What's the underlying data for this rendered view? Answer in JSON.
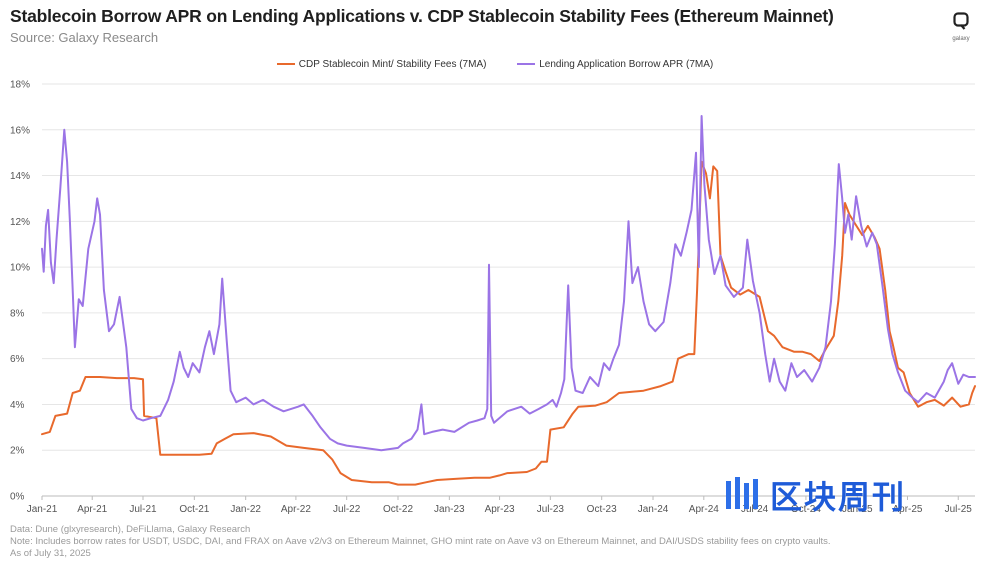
{
  "header": {
    "title": "Stablecoin Borrow APR on Lending Applications v. CDP Stablecoin Stability Fees (Ethereum Mainnet)",
    "subtitle": "Source: Galaxy Research",
    "logo_text": "galaxy"
  },
  "watermark": {
    "text": "区块周刊"
  },
  "notes": {
    "line1": "Data: Dune (glxyresearch), DeFiLlama, Galaxy Research",
    "line2": "Note: Includes borrow rates for USDT, USDC, DAI, and FRAX on Aave v2/v3 on Ethereum Mainnet, GHO mint rate on Aave v3 on Ethereum Mainnet, and DAI/USDS stability fees on crypto vaults.",
    "line3": "As of July 31, 2025"
  },
  "colors": {
    "cdp": "#e8692c",
    "lending": "#9b74e6",
    "grid": "#e6e6e6"
  },
  "chart_data": {
    "type": "line",
    "title": "Stablecoin Borrow APR on Lending Applications v. CDP Stablecoin Stability Fees (Ethereum Mainnet)",
    "xlabel": "",
    "ylabel": "",
    "ylim": [
      0,
      18
    ],
    "y_ticks": [
      "0%",
      "2%",
      "4%",
      "6%",
      "8%",
      "10%",
      "12%",
      "14%",
      "16%",
      "18%"
    ],
    "x_range": [
      "2021-01-01",
      "2025-07-31"
    ],
    "x_ticks": [
      "Jan-21",
      "Apr-21",
      "Jul-21",
      "Oct-21",
      "Jan-22",
      "Apr-22",
      "Jul-22",
      "Oct-22",
      "Jan-23",
      "Apr-23",
      "Jul-23",
      "Oct-23",
      "Jan-24",
      "Apr-24",
      "Jul-24",
      "Oct-24",
      "Jan-25",
      "Apr-25",
      "Jul-25"
    ],
    "grid": "horizontal",
    "legend_position": "top-center",
    "series": [
      {
        "name": "CDP Stablecoin Mint/ Stability Fees (7MA)",
        "color": "#e8692c",
        "points": [
          [
            "2021-01-01",
            2.7
          ],
          [
            "2021-01-15",
            2.8
          ],
          [
            "2021-01-25",
            3.5
          ],
          [
            "2021-02-15",
            3.6
          ],
          [
            "2021-02-25",
            4.5
          ],
          [
            "2021-03-10",
            4.6
          ],
          [
            "2021-03-20",
            5.2
          ],
          [
            "2021-04-15",
            5.2
          ],
          [
            "2021-05-15",
            5.15
          ],
          [
            "2021-06-15",
            5.15
          ],
          [
            "2021-07-01",
            5.1
          ],
          [
            "2021-07-03",
            3.5
          ],
          [
            "2021-07-25",
            3.4
          ],
          [
            "2021-08-01",
            1.8
          ],
          [
            "2021-10-10",
            1.8
          ],
          [
            "2021-11-01",
            1.85
          ],
          [
            "2021-11-10",
            2.3
          ],
          [
            "2021-11-25",
            2.5
          ],
          [
            "2021-12-10",
            2.7
          ],
          [
            "2022-01-15",
            2.75
          ],
          [
            "2022-02-15",
            2.6
          ],
          [
            "2022-03-15",
            2.2
          ],
          [
            "2022-04-15",
            2.1
          ],
          [
            "2022-05-20",
            2.0
          ],
          [
            "2022-06-05",
            1.6
          ],
          [
            "2022-06-20",
            1.0
          ],
          [
            "2022-07-10",
            0.7
          ],
          [
            "2022-08-15",
            0.6
          ],
          [
            "2022-09-15",
            0.6
          ],
          [
            "2022-10-01",
            0.5
          ],
          [
            "2022-11-01",
            0.5
          ],
          [
            "2022-11-20",
            0.6
          ],
          [
            "2022-12-10",
            0.7
          ],
          [
            "2023-01-15",
            0.75
          ],
          [
            "2023-02-15",
            0.8
          ],
          [
            "2023-03-15",
            0.8
          ],
          [
            "2023-04-01",
            0.9
          ],
          [
            "2023-04-15",
            1.0
          ],
          [
            "2023-05-20",
            1.05
          ],
          [
            "2023-06-05",
            1.2
          ],
          [
            "2023-06-15",
            1.5
          ],
          [
            "2023-06-25",
            1.5
          ],
          [
            "2023-07-01",
            2.9
          ],
          [
            "2023-07-25",
            3.0
          ],
          [
            "2023-08-10",
            3.6
          ],
          [
            "2023-08-20",
            3.9
          ],
          [
            "2023-09-20",
            3.95
          ],
          [
            "2023-10-10",
            4.1
          ],
          [
            "2023-11-01",
            4.5
          ],
          [
            "2023-12-15",
            4.6
          ],
          [
            "2024-01-15",
            4.8
          ],
          [
            "2024-02-05",
            5.0
          ],
          [
            "2024-02-15",
            6.0
          ],
          [
            "2024-03-05",
            6.2
          ],
          [
            "2024-03-15",
            6.2
          ],
          [
            "2024-03-20",
            9.0
          ],
          [
            "2024-03-28",
            14.6
          ],
          [
            "2024-04-05",
            14.1
          ],
          [
            "2024-04-12",
            13.0
          ],
          [
            "2024-04-18",
            14.4
          ],
          [
            "2024-04-25",
            14.2
          ],
          [
            "2024-05-01",
            10.5
          ],
          [
            "2024-05-10",
            9.8
          ],
          [
            "2024-05-20",
            9.1
          ],
          [
            "2024-06-05",
            8.8
          ],
          [
            "2024-06-20",
            9.0
          ],
          [
            "2024-07-10",
            8.7
          ],
          [
            "2024-07-25",
            7.2
          ],
          [
            "2024-08-05",
            7.0
          ],
          [
            "2024-08-20",
            6.5
          ],
          [
            "2024-09-10",
            6.3
          ],
          [
            "2024-09-25",
            6.3
          ],
          [
            "2024-10-10",
            6.2
          ],
          [
            "2024-10-25",
            5.9
          ],
          [
            "2024-11-05",
            6.4
          ],
          [
            "2024-11-20",
            7.0
          ],
          [
            "2024-11-28",
            8.5
          ],
          [
            "2024-12-05",
            10.5
          ],
          [
            "2024-12-10",
            12.8
          ],
          [
            "2024-12-18",
            12.3
          ],
          [
            "2024-12-28",
            11.9
          ],
          [
            "2025-01-10",
            11.4
          ],
          [
            "2025-01-20",
            11.8
          ],
          [
            "2025-02-01",
            11.3
          ],
          [
            "2025-02-10",
            10.8
          ],
          [
            "2025-02-20",
            9.0
          ],
          [
            "2025-02-28",
            7.2
          ],
          [
            "2025-03-05",
            6.7
          ],
          [
            "2025-03-15",
            5.6
          ],
          [
            "2025-03-25",
            5.4
          ],
          [
            "2025-04-05",
            4.5
          ],
          [
            "2025-04-20",
            3.9
          ],
          [
            "2025-05-05",
            4.1
          ],
          [
            "2025-05-20",
            4.2
          ],
          [
            "2025-06-05",
            3.95
          ],
          [
            "2025-06-20",
            4.3
          ],
          [
            "2025-07-05",
            3.9
          ],
          [
            "2025-07-20",
            4.0
          ],
          [
            "2025-07-26",
            4.5
          ],
          [
            "2025-07-31",
            4.8
          ]
        ]
      },
      {
        "name": "Lending Application Borrow APR (7MA)",
        "color": "#9b74e6",
        "points": [
          [
            "2021-01-01",
            10.8
          ],
          [
            "2021-01-04",
            9.8
          ],
          [
            "2021-01-08",
            11.8
          ],
          [
            "2021-01-12",
            12.5
          ],
          [
            "2021-01-17",
            10.2
          ],
          [
            "2021-01-22",
            9.3
          ],
          [
            "2021-01-27",
            11.2
          ],
          [
            "2021-02-03",
            13.5
          ],
          [
            "2021-02-10",
            16.0
          ],
          [
            "2021-02-15",
            14.6
          ],
          [
            "2021-02-20",
            12.0
          ],
          [
            "2021-02-25",
            9.0
          ],
          [
            "2021-03-01",
            6.5
          ],
          [
            "2021-03-08",
            8.6
          ],
          [
            "2021-03-15",
            8.3
          ],
          [
            "2021-03-25",
            10.8
          ],
          [
            "2021-04-05",
            12.0
          ],
          [
            "2021-04-10",
            13.0
          ],
          [
            "2021-04-15",
            12.3
          ],
          [
            "2021-04-22",
            9.0
          ],
          [
            "2021-05-01",
            7.2
          ],
          [
            "2021-05-10",
            7.5
          ],
          [
            "2021-05-20",
            8.7
          ],
          [
            "2021-06-01",
            6.5
          ],
          [
            "2021-06-10",
            3.8
          ],
          [
            "2021-06-20",
            3.4
          ],
          [
            "2021-07-01",
            3.3
          ],
          [
            "2021-07-15",
            3.4
          ],
          [
            "2021-08-01",
            3.5
          ],
          [
            "2021-08-15",
            4.2
          ],
          [
            "2021-08-25",
            5.0
          ],
          [
            "2021-09-05",
            6.3
          ],
          [
            "2021-09-12",
            5.6
          ],
          [
            "2021-09-20",
            5.2
          ],
          [
            "2021-09-28",
            5.8
          ],
          [
            "2021-10-10",
            5.4
          ],
          [
            "2021-10-20",
            6.5
          ],
          [
            "2021-10-28",
            7.2
          ],
          [
            "2021-11-05",
            6.2
          ],
          [
            "2021-11-15",
            7.5
          ],
          [
            "2021-11-20",
            9.5
          ],
          [
            "2021-11-28",
            6.8
          ],
          [
            "2021-12-05",
            4.6
          ],
          [
            "2021-12-15",
            4.1
          ],
          [
            "2022-01-01",
            4.3
          ],
          [
            "2022-01-15",
            4.0
          ],
          [
            "2022-02-01",
            4.2
          ],
          [
            "2022-02-20",
            3.9
          ],
          [
            "2022-03-10",
            3.7
          ],
          [
            "2022-04-05",
            3.9
          ],
          [
            "2022-04-15",
            4.0
          ],
          [
            "2022-05-01",
            3.5
          ],
          [
            "2022-05-15",
            3.0
          ],
          [
            "2022-06-01",
            2.5
          ],
          [
            "2022-06-15",
            2.3
          ],
          [
            "2022-07-01",
            2.2
          ],
          [
            "2022-08-01",
            2.1
          ],
          [
            "2022-09-01",
            2.0
          ],
          [
            "2022-10-01",
            2.1
          ],
          [
            "2022-10-10",
            2.3
          ],
          [
            "2022-10-25",
            2.5
          ],
          [
            "2022-11-05",
            2.9
          ],
          [
            "2022-11-12",
            4.0
          ],
          [
            "2022-11-17",
            2.7
          ],
          [
            "2022-12-01",
            2.8
          ],
          [
            "2022-12-20",
            2.9
          ],
          [
            "2023-01-10",
            2.8
          ],
          [
            "2023-02-05",
            3.2
          ],
          [
            "2023-02-20",
            3.3
          ],
          [
            "2023-03-05",
            3.4
          ],
          [
            "2023-03-10",
            3.8
          ],
          [
            "2023-03-13",
            10.1
          ],
          [
            "2023-03-17",
            3.5
          ],
          [
            "2023-03-22",
            3.2
          ],
          [
            "2023-04-15",
            3.7
          ],
          [
            "2023-05-10",
            3.9
          ],
          [
            "2023-05-25",
            3.6
          ],
          [
            "2023-06-10",
            3.8
          ],
          [
            "2023-06-25",
            4.0
          ],
          [
            "2023-07-05",
            4.2
          ],
          [
            "2023-07-12",
            3.9
          ],
          [
            "2023-07-20",
            4.5
          ],
          [
            "2023-07-26",
            5.1
          ],
          [
            "2023-08-02",
            9.2
          ],
          [
            "2023-08-08",
            5.6
          ],
          [
            "2023-08-15",
            4.6
          ],
          [
            "2023-08-28",
            4.5
          ],
          [
            "2023-09-10",
            5.2
          ],
          [
            "2023-09-25",
            4.8
          ],
          [
            "2023-10-05",
            5.8
          ],
          [
            "2023-10-15",
            5.5
          ],
          [
            "2023-10-22",
            6.0
          ],
          [
            "2023-11-01",
            6.6
          ],
          [
            "2023-11-10",
            8.5
          ],
          [
            "2023-11-18",
            12.0
          ],
          [
            "2023-11-25",
            9.3
          ],
          [
            "2023-12-05",
            10.0
          ],
          [
            "2023-12-15",
            8.5
          ],
          [
            "2023-12-25",
            7.5
          ],
          [
            "2024-01-05",
            7.2
          ],
          [
            "2024-01-20",
            7.6
          ],
          [
            "2024-02-01",
            9.3
          ],
          [
            "2024-02-10",
            11.0
          ],
          [
            "2024-02-20",
            10.5
          ],
          [
            "2024-03-01",
            11.5
          ],
          [
            "2024-03-10",
            12.5
          ],
          [
            "2024-03-18",
            15.0
          ],
          [
            "2024-03-23",
            10.0
          ],
          [
            "2024-03-28",
            16.6
          ],
          [
            "2024-04-02",
            13.6
          ],
          [
            "2024-04-10",
            11.2
          ],
          [
            "2024-04-20",
            9.7
          ],
          [
            "2024-05-01",
            10.5
          ],
          [
            "2024-05-10",
            9.2
          ],
          [
            "2024-05-25",
            8.7
          ],
          [
            "2024-06-10",
            9.1
          ],
          [
            "2024-06-18",
            11.2
          ],
          [
            "2024-06-28",
            9.4
          ],
          [
            "2024-07-10",
            8.0
          ],
          [
            "2024-07-20",
            6.2
          ],
          [
            "2024-07-28",
            5.0
          ],
          [
            "2024-08-05",
            6.0
          ],
          [
            "2024-08-15",
            5.0
          ],
          [
            "2024-08-25",
            4.6
          ],
          [
            "2024-09-05",
            5.8
          ],
          [
            "2024-09-15",
            5.2
          ],
          [
            "2024-09-28",
            5.5
          ],
          [
            "2024-10-12",
            5.0
          ],
          [
            "2024-10-25",
            5.6
          ],
          [
            "2024-11-05",
            6.5
          ],
          [
            "2024-11-15",
            8.5
          ],
          [
            "2024-11-22",
            11.0
          ],
          [
            "2024-11-29",
            14.5
          ],
          [
            "2024-12-05",
            13.0
          ],
          [
            "2024-12-10",
            11.5
          ],
          [
            "2024-12-16",
            12.3
          ],
          [
            "2024-12-22",
            11.2
          ],
          [
            "2024-12-30",
            13.1
          ],
          [
            "2025-01-08",
            11.8
          ],
          [
            "2025-01-18",
            10.9
          ],
          [
            "2025-01-28",
            11.5
          ],
          [
            "2025-02-05",
            11.0
          ],
          [
            "2025-02-15",
            9.2
          ],
          [
            "2025-02-25",
            7.3
          ],
          [
            "2025-03-05",
            6.2
          ],
          [
            "2025-03-15",
            5.4
          ],
          [
            "2025-03-28",
            4.6
          ],
          [
            "2025-04-10",
            4.3
          ],
          [
            "2025-04-20",
            4.1
          ],
          [
            "2025-05-05",
            4.5
          ],
          [
            "2025-05-20",
            4.3
          ],
          [
            "2025-06-05",
            5.0
          ],
          [
            "2025-06-12",
            5.5
          ],
          [
            "2025-06-20",
            5.8
          ],
          [
            "2025-07-01",
            4.9
          ],
          [
            "2025-07-10",
            5.3
          ],
          [
            "2025-07-20",
            5.2
          ],
          [
            "2025-07-31",
            5.2
          ]
        ]
      }
    ]
  }
}
